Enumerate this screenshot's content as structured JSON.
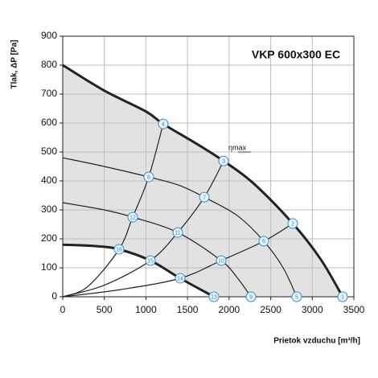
{
  "chart_data": {
    "type": "line",
    "title": "VKP 600x300 EC",
    "x_label": "Prietok vzduchu [m³/h]",
    "y_label": "Tlak, ΔP [Pa]",
    "annotation": "ηmax",
    "xlim": [
      0,
      3500
    ],
    "xticks": [
      0,
      500,
      1000,
      1500,
      2000,
      2500,
      3000,
      3500
    ],
    "ylim": [
      0,
      900
    ],
    "yticks": [
      0,
      100,
      200,
      300,
      400,
      500,
      600,
      700,
      800,
      900
    ],
    "grid": true,
    "area_color": "#e2e2e2",
    "series": [
      {
        "color": "#222222",
        "width": 3,
        "x": [
          0,
          500,
          1000,
          1208,
          1600,
          1934,
          2300,
          2765,
          3100,
          3365
        ],
        "values": [
          800,
          712,
          640,
          597,
          530,
          469,
          390,
          253,
          130,
          0
        ]
      },
      {
        "color": "#222222",
        "width": 3,
        "x": [
          0,
          400,
          677,
          1054,
          1412,
          1818
        ],
        "values": [
          180,
          175,
          164,
          125,
          64,
          0
        ]
      },
      {
        "color": "#222222",
        "width": 1.2,
        "x": [
          0,
          500,
          1034,
          1400,
          1702,
          2100,
          2417,
          2650,
          2813
        ],
        "values": [
          480,
          450,
          414,
          385,
          344,
          280,
          192,
          100,
          0
        ]
      },
      {
        "color": "#222222",
        "width": 1.2,
        "x": [
          0,
          500,
          841,
          1383,
          1905,
          2100,
          2263
        ],
        "values": [
          325,
          300,
          275,
          222,
          125,
          65,
          0
        ]
      },
      {
        "color": "#222222",
        "width": 1.2,
        "x": [
          0,
          300,
          677,
          841,
          1034,
          1208
        ],
        "values": [
          0,
          35,
          164,
          275,
          414,
          597
        ]
      },
      {
        "color": "#222222",
        "width": 1.2,
        "x": [
          0,
          500,
          1054,
          1383,
          1702,
          1934
        ],
        "values": [
          0,
          40,
          125,
          222,
          344,
          469
        ]
      },
      {
        "color": "#222222",
        "width": 1.2,
        "x": [
          0,
          700,
          1412,
          1905,
          2417,
          2765
        ],
        "values": [
          0,
          25,
          64,
          125,
          192,
          253
        ]
      }
    ],
    "points": {
      "color": "#3a8cc8",
      "labels": [
        "1",
        "2",
        "3",
        "4",
        "5",
        "6",
        "7",
        "8",
        "9",
        "10",
        "11",
        "12",
        "13",
        "14",
        "15",
        "16"
      ],
      "x": [
        3365,
        2765,
        1934,
        1208,
        2813,
        2417,
        1702,
        1034,
        2263,
        1905,
        1383,
        841,
        1818,
        1412,
        1054,
        677
      ],
      "values": [
        0,
        253,
        469,
        597,
        0,
        192,
        344,
        414,
        0,
        125,
        222,
        275,
        0,
        64,
        125,
        164
      ]
    }
  }
}
